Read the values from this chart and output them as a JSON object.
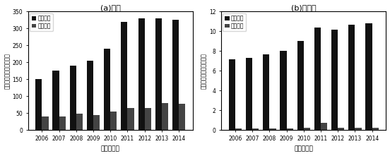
{
  "years": [
    2006,
    2007,
    2008,
    2009,
    2010,
    2011,
    2012,
    2013,
    2014
  ],
  "national_production": [
    150,
    175,
    190,
    205,
    240,
    320,
    330,
    330,
    325
  ],
  "national_treatment": [
    40,
    40,
    48,
    45,
    55,
    65,
    65,
    80,
    78
  ],
  "jiangsu_production": [
    7.2,
    7.3,
    7.7,
    8.0,
    9.0,
    10.4,
    10.2,
    10.7,
    10.8
  ],
  "jiangsu_treatment": [
    0.15,
    0.15,
    0.15,
    0.15,
    0.2,
    0.7,
    0.2,
    0.2,
    0.2
  ],
  "title_a": "(a)全国",
  "title_b": "(b)江苏省",
  "xlabel": "时间（年）",
  "ylabel": "固体废弃物量（千万吨）",
  "legend_prod": "生产总量",
  "legend_treat": "处理总量",
  "ylim_a": [
    0,
    350
  ],
  "ylim_b": [
    0,
    12
  ],
  "bar_color_prod": "#111111",
  "bar_color_treat": "#444444",
  "bar_width": 0.38,
  "yticks_a": [
    0,
    50,
    100,
    150,
    200,
    250,
    300,
    350
  ],
  "yticks_b": [
    0,
    2,
    4,
    6,
    8,
    10,
    12
  ]
}
